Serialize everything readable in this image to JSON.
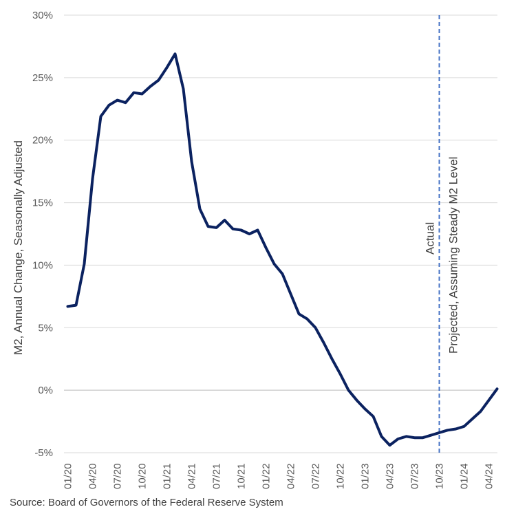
{
  "chart_data": {
    "type": "line",
    "ylabel": "M2, Annual Change, Seasonally Adjusted",
    "ylim": [
      -5,
      30
    ],
    "ytick_values": [
      30,
      25,
      20,
      15,
      10,
      5,
      0,
      -5
    ],
    "ytick_labels": [
      "30%",
      "25%",
      "20%",
      "15%",
      "10%",
      "5%",
      "0%",
      "-5%"
    ],
    "x_tick_labels": [
      "01/20",
      "04/20",
      "07/20",
      "10/20",
      "01/21",
      "04/21",
      "07/21",
      "10/21",
      "01/22",
      "04/22",
      "07/22",
      "10/22",
      "01/23",
      "04/23",
      "07/23",
      "10/23",
      "01/24",
      "04/24"
    ],
    "series": [
      {
        "name": "M2 annual change",
        "color": "#0b2260",
        "values": [
          6.7,
          6.8,
          10.1,
          16.9,
          21.9,
          22.8,
          23.2,
          23.0,
          23.8,
          23.7,
          24.3,
          24.8,
          25.8,
          26.9,
          24.1,
          18.3,
          14.5,
          13.1,
          13.0,
          13.6,
          12.9,
          12.8,
          12.5,
          12.8,
          11.4,
          10.1,
          9.3,
          7.7,
          6.1,
          5.7,
          5.0,
          3.8,
          2.5,
          1.3,
          0.0,
          -0.8,
          -1.5,
          -2.1,
          -3.7,
          -4.4,
          -3.9,
          -3.7,
          -3.8,
          -3.8,
          -3.6,
          -3.4,
          -3.2,
          -3.1,
          -2.9,
          -2.3,
          -1.7,
          -0.8,
          0.1
        ]
      }
    ],
    "divider": {
      "after_label": "10/23",
      "color": "#4472c4",
      "left_label": "Actual",
      "right_label": "Projected, Assuming Steady M2 Level"
    },
    "source": "Source: Board of Governors of the Federal Reserve System"
  }
}
